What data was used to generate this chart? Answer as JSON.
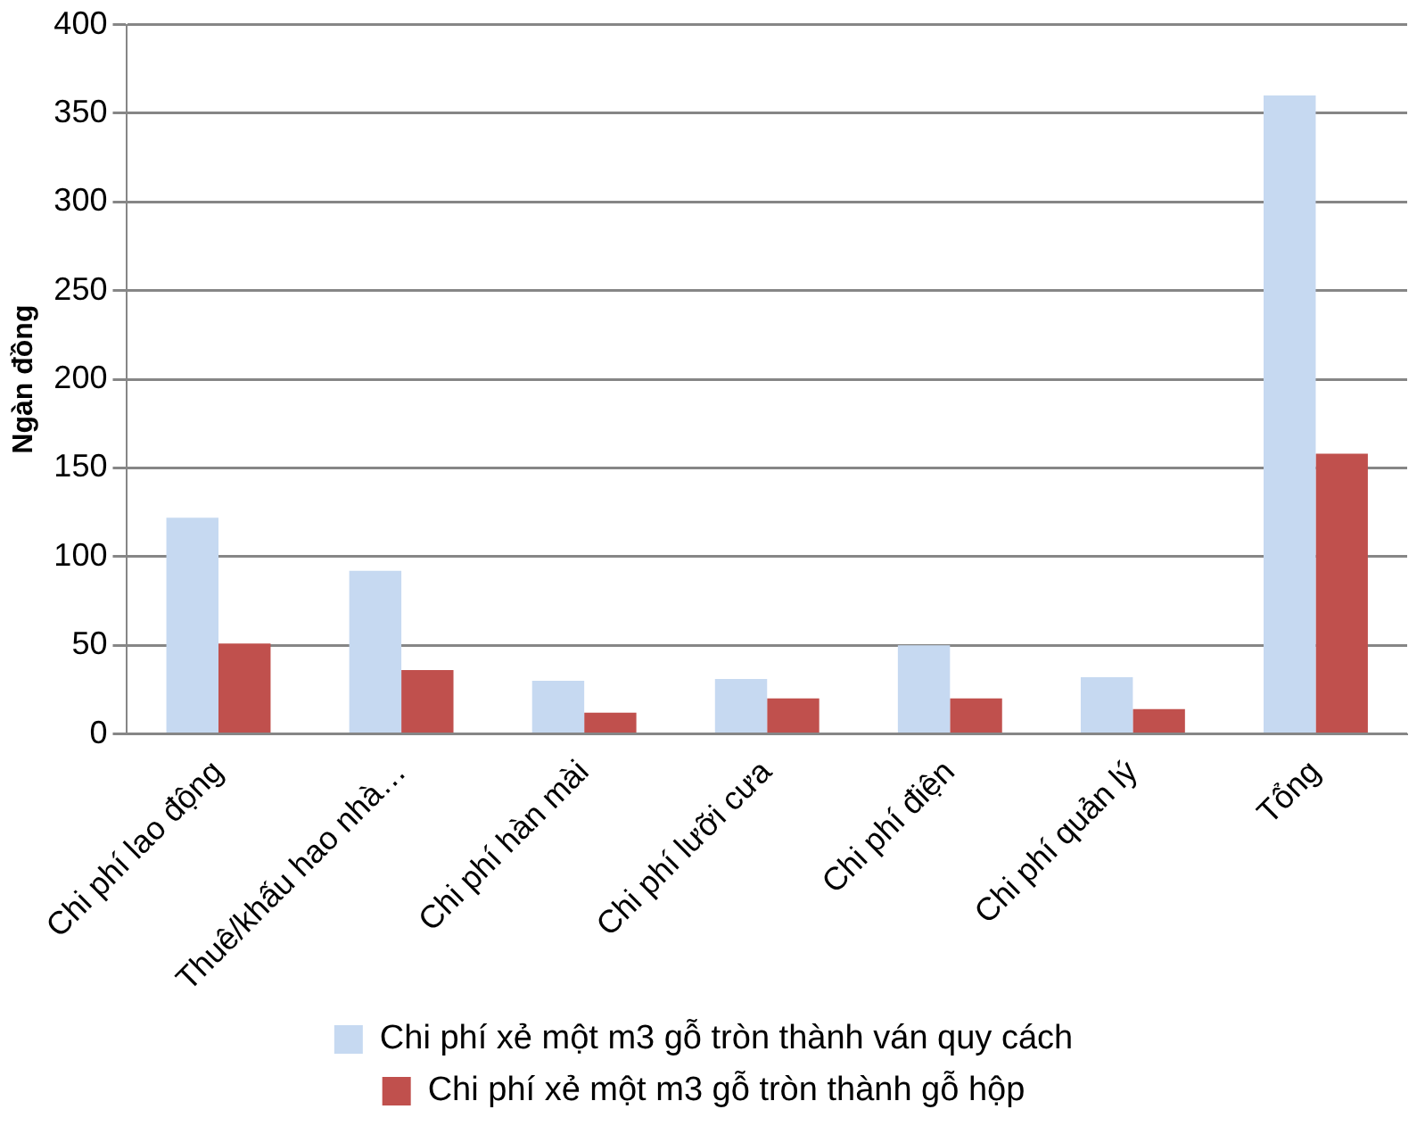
{
  "chart_data": {
    "type": "bar",
    "ylabel": "Ngàn đồng",
    "categories": [
      "Chi phí lao động",
      "Thuê/khấu hao nhà…",
      "Chi phí hàn mài",
      "Chi phí lưỡi cưa",
      "Chi phí điện",
      "Chi phí quản lý",
      "Tổng"
    ],
    "series": [
      {
        "name": "Chi phí xẻ một m3 gỗ tròn thành ván quy cách",
        "color": "#c6d9f1",
        "values": [
          122,
          92,
          30,
          31,
          50,
          32,
          360
        ]
      },
      {
        "name": "Chi phí xẻ một m3 gỗ tròn thành gỗ hộp",
        "color": "#c0504d",
        "values": [
          51,
          36,
          12,
          20,
          20,
          14,
          158
        ]
      }
    ],
    "ylim": [
      0,
      400
    ],
    "yticks": [
      0,
      50,
      100,
      150,
      200,
      250,
      300,
      350,
      400
    ],
    "grid": "y",
    "legend": "bottom"
  }
}
